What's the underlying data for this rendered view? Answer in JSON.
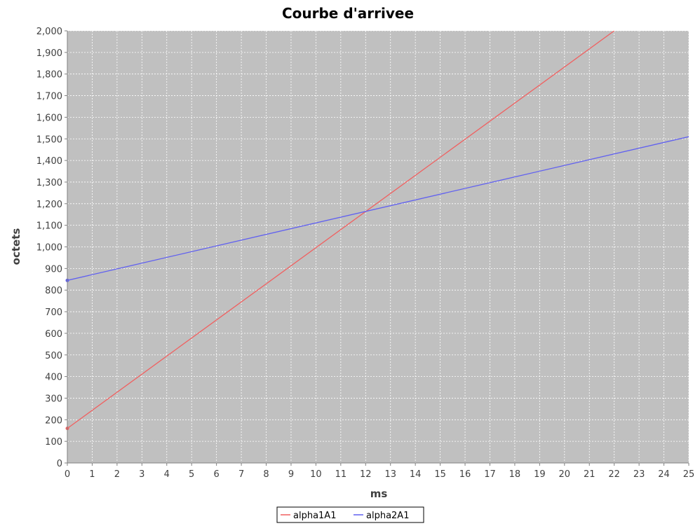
{
  "chart_data": {
    "type": "line",
    "title": "Courbe d'arrivee",
    "xlabel": "ms",
    "ylabel": "octets",
    "xlim": [
      0,
      25
    ],
    "ylim": [
      0,
      2000
    ],
    "x_ticks": [
      0,
      1,
      2,
      3,
      4,
      5,
      6,
      7,
      8,
      9,
      10,
      11,
      12,
      13,
      14,
      15,
      16,
      17,
      18,
      19,
      20,
      21,
      22,
      23,
      24,
      25
    ],
    "y_ticks": [
      0,
      100,
      200,
      300,
      400,
      500,
      600,
      700,
      800,
      900,
      1000,
      1100,
      1200,
      1300,
      1400,
      1500,
      1600,
      1700,
      1800,
      1900,
      2000
    ],
    "y_tick_labels": [
      "0",
      "100",
      "200",
      "300",
      "400",
      "500",
      "600",
      "700",
      "800",
      "900",
      "1,000",
      "1,100",
      "1,200",
      "1,300",
      "1,400",
      "1,500",
      "1,600",
      "1,700",
      "1,800",
      "1,900",
      "2,000"
    ],
    "grid": true,
    "legend_position": "bottom",
    "plot_background": "#c0c0c0",
    "series": [
      {
        "name": "alpha1A1",
        "color": "#f06060",
        "x": [
          0,
          22
        ],
        "y": [
          160,
          2000
        ]
      },
      {
        "name": "alpha2A1",
        "color": "#6060f0",
        "x": [
          0,
          25
        ],
        "y": [
          845,
          1510
        ]
      }
    ]
  }
}
